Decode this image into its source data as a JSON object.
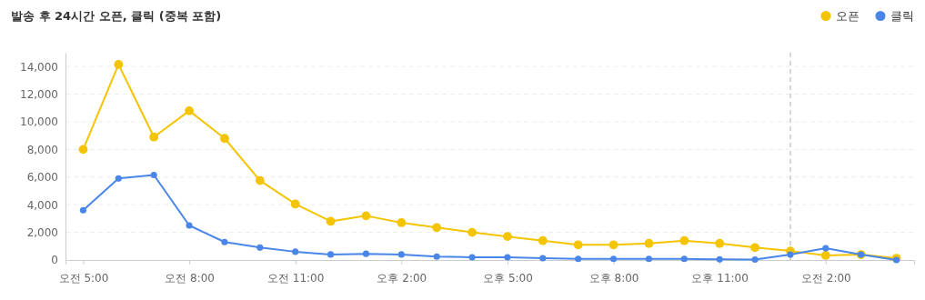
{
  "chart_data": {
    "type": "line",
    "title": "발송 후 24시간 오픈, 클릭 (중복 포함)",
    "categories": [
      "오전 5:00",
      null,
      null,
      "오전 8:00",
      null,
      null,
      "오전 11:00",
      null,
      null,
      "오후 2:00",
      null,
      null,
      "오후 5:00",
      null,
      null,
      "오후 8:00",
      null,
      null,
      "오후 11:00",
      null,
      null,
      "오전 2:00",
      null,
      null
    ],
    "series": [
      {
        "name": "오픈",
        "color": "#f5c400",
        "values": [
          8000,
          14150,
          8900,
          10800,
          8800,
          5750,
          4050,
          2800,
          3200,
          2700,
          2350,
          2000,
          1700,
          1400,
          1100,
          1100,
          1200,
          1400,
          1200,
          900,
          650,
          330,
          390,
          130
        ]
      },
      {
        "name": "클릭",
        "color": "#4a86e8",
        "values": [
          3600,
          5900,
          6150,
          2500,
          1300,
          900,
          600,
          400,
          450,
          400,
          250,
          200,
          200,
          130,
          80,
          80,
          80,
          80,
          50,
          30,
          390,
          850,
          390,
          0
        ]
      }
    ],
    "ylim": [
      0,
      15000
    ],
    "yticks": [
      0,
      {
        "value": 2000,
        "label": "2,000"
      },
      {
        "value": 4000,
        "label": "4,000"
      },
      {
        "value": 6000,
        "label": "6,000"
      },
      {
        "value": 8000,
        "label": "8,000"
      },
      {
        "value": 10000,
        "label": "10,000"
      },
      {
        "value": 12000,
        "label": "12,000"
      },
      {
        "value": 14000,
        "label": "14,000"
      }
    ],
    "grid": "y",
    "legend": "top right",
    "marker": "circle",
    "line_style": "solid"
  }
}
